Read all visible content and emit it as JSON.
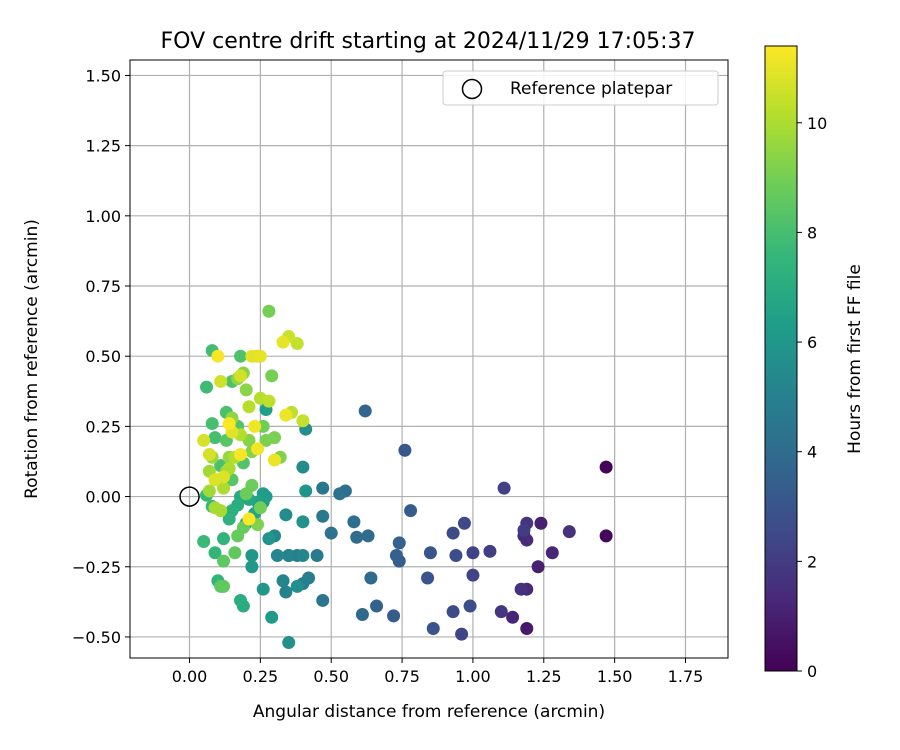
{
  "chart_data": {
    "type": "scatter",
    "title": "FOV centre drift starting at 2024/11/29 17:05:37",
    "xlabel": "Angular distance from reference (arcmin)",
    "ylabel": "Rotation from reference (arcmin)",
    "xlim": [
      -0.21,
      1.9
    ],
    "ylim": [
      -0.575,
      1.555
    ],
    "xticks": [
      "0.00",
      "0.25",
      "0.50",
      "0.75",
      "1.00",
      "1.25",
      "1.50",
      "1.75"
    ],
    "xtick_values": [
      0,
      0.25,
      0.5,
      0.75,
      1.0,
      1.25,
      1.5,
      1.75
    ],
    "yticks": [
      "−0.50",
      "−0.25",
      "0.00",
      "0.25",
      "0.50",
      "0.75",
      "1.00",
      "1.25",
      "1.50"
    ],
    "ytick_values": [
      -0.5,
      -0.25,
      0,
      0.25,
      0.5,
      0.75,
      1.0,
      1.25,
      1.5
    ],
    "grid": true,
    "legend": {
      "position": "top-right",
      "entries": [
        "Reference platepar"
      ]
    },
    "reference_point": {
      "x": 0.0,
      "y": 0.0
    },
    "colorbar": {
      "label": "Hours from first FF file",
      "range": [
        0,
        11.4
      ],
      "ticks": [
        "0",
        "2",
        "4",
        "6",
        "8",
        "10"
      ],
      "tick_values": [
        0,
        2,
        4,
        6,
        8,
        10
      ],
      "colormap": "viridis"
    },
    "points": [
      {
        "x": 1.47,
        "y": 0.105,
        "c": 0.1
      },
      {
        "x": 1.47,
        "y": -0.14,
        "c": 0.2
      },
      {
        "x": 1.19,
        "y": -0.47,
        "c": 0.8
      },
      {
        "x": 1.23,
        "y": -0.25,
        "c": 1.0
      },
      {
        "x": 1.24,
        "y": -0.095,
        "c": 1.0
      },
      {
        "x": 1.14,
        "y": -0.43,
        "c": 1.2
      },
      {
        "x": 1.28,
        "y": -0.2,
        "c": 1.2
      },
      {
        "x": 1.19,
        "y": -0.33,
        "c": 1.3
      },
      {
        "x": 1.18,
        "y": -0.14,
        "c": 1.4
      },
      {
        "x": 1.19,
        "y": -0.155,
        "c": 1.4
      },
      {
        "x": 1.34,
        "y": -0.125,
        "c": 1.6
      },
      {
        "x": 1.17,
        "y": -0.33,
        "c": 1.6
      },
      {
        "x": 1.19,
        "y": -0.095,
        "c": 1.7
      },
      {
        "x": 1.1,
        "y": -0.41,
        "c": 1.8
      },
      {
        "x": 1.18,
        "y": -0.12,
        "c": 2.0
      },
      {
        "x": 1.06,
        "y": -0.195,
        "c": 2.1
      },
      {
        "x": 1.11,
        "y": 0.03,
        "c": 2.2
      },
      {
        "x": 1.0,
        "y": -0.28,
        "c": 2.3
      },
      {
        "x": 1.0,
        "y": -0.2,
        "c": 2.3
      },
      {
        "x": 0.96,
        "y": -0.49,
        "c": 2.4
      },
      {
        "x": 0.97,
        "y": -0.095,
        "c": 2.5
      },
      {
        "x": 0.93,
        "y": -0.13,
        "c": 2.6
      },
      {
        "x": 0.93,
        "y": -0.41,
        "c": 2.6
      },
      {
        "x": 0.94,
        "y": -0.21,
        "c": 2.7
      },
      {
        "x": 0.99,
        "y": -0.39,
        "c": 2.7
      },
      {
        "x": 0.86,
        "y": -0.47,
        "c": 2.9
      },
      {
        "x": 0.85,
        "y": -0.2,
        "c": 3.0
      },
      {
        "x": 0.84,
        "y": -0.29,
        "c": 3.0
      },
      {
        "x": 0.76,
        "y": 0.165,
        "c": 3.1
      },
      {
        "x": 0.78,
        "y": -0.05,
        "c": 3.3
      },
      {
        "x": 0.72,
        "y": -0.425,
        "c": 3.3
      },
      {
        "x": 0.74,
        "y": -0.23,
        "c": 3.4
      },
      {
        "x": 0.73,
        "y": -0.21,
        "c": 3.5
      },
      {
        "x": 0.74,
        "y": -0.165,
        "c": 3.5
      },
      {
        "x": 0.66,
        "y": -0.39,
        "c": 3.6
      },
      {
        "x": 0.62,
        "y": 0.305,
        "c": 3.7
      },
      {
        "x": 0.61,
        "y": -0.42,
        "c": 3.8
      },
      {
        "x": 0.64,
        "y": -0.29,
        "c": 3.9
      },
      {
        "x": 0.63,
        "y": -0.14,
        "c": 4.0
      },
      {
        "x": 0.59,
        "y": -0.145,
        "c": 4.0
      },
      {
        "x": 0.58,
        "y": -0.09,
        "c": 4.1
      },
      {
        "x": 0.55,
        "y": 0.02,
        "c": 4.2
      },
      {
        "x": 0.53,
        "y": 0.01,
        "c": 4.3
      },
      {
        "x": 0.5,
        "y": -0.13,
        "c": 4.3
      },
      {
        "x": 0.47,
        "y": -0.37,
        "c": 4.5
      },
      {
        "x": 0.47,
        "y": 0.03,
        "c": 4.5
      },
      {
        "x": 0.47,
        "y": -0.07,
        "c": 4.6
      },
      {
        "x": 0.45,
        "y": -0.21,
        "c": 4.7
      },
      {
        "x": 0.42,
        "y": -0.29,
        "c": 4.8
      },
      {
        "x": 0.4,
        "y": -0.31,
        "c": 4.9
      },
      {
        "x": 0.38,
        "y": -0.21,
        "c": 4.9
      },
      {
        "x": 0.35,
        "y": -0.21,
        "c": 5.0
      },
      {
        "x": 0.35,
        "y": -0.21,
        "c": 5.1
      },
      {
        "x": 0.34,
        "y": -0.34,
        "c": 5.1
      },
      {
        "x": 0.33,
        "y": -0.3,
        "c": 5.2
      },
      {
        "x": 0.4,
        "y": -0.21,
        "c": 5.3
      },
      {
        "x": 0.31,
        "y": -0.21,
        "c": 5.3
      },
      {
        "x": 0.3,
        "y": -0.14,
        "c": 5.4
      },
      {
        "x": 0.34,
        "y": -0.065,
        "c": 5.5
      },
      {
        "x": 0.4,
        "y": 0.105,
        "c": 5.5
      },
      {
        "x": 0.41,
        "y": 0.24,
        "c": 5.6
      },
      {
        "x": 0.38,
        "y": -0.32,
        "c": 5.6
      },
      {
        "x": 0.35,
        "y": -0.52,
        "c": 5.7
      },
      {
        "x": 0.4,
        "y": -0.09,
        "c": 5.8
      },
      {
        "x": 0.41,
        "y": 0.02,
        "c": 5.9
      },
      {
        "x": 0.28,
        "y": -0.15,
        "c": 5.9
      },
      {
        "x": 0.26,
        "y": -0.33,
        "c": 6.0
      },
      {
        "x": 0.22,
        "y": -0.21,
        "c": 6.0
      },
      {
        "x": 0.22,
        "y": -0.25,
        "c": 6.1
      },
      {
        "x": 0.27,
        "y": 0.0,
        "c": 6.2
      },
      {
        "x": 0.29,
        "y": -0.43,
        "c": 6.2
      },
      {
        "x": 0.26,
        "y": 0.01,
        "c": 6.3
      },
      {
        "x": 0.26,
        "y": -0.02,
        "c": 6.4
      },
      {
        "x": 0.27,
        "y": 0.31,
        "c": 6.4
      },
      {
        "x": 0.24,
        "y": -0.02,
        "c": 6.5
      },
      {
        "x": 0.23,
        "y": -0.06,
        "c": 6.6
      },
      {
        "x": 0.21,
        "y": -0.01,
        "c": 6.7
      },
      {
        "x": 0.2,
        "y": -0.095,
        "c": 6.8
      },
      {
        "x": 0.18,
        "y": 0.0,
        "c": 6.9
      },
      {
        "x": 0.19,
        "y": -0.39,
        "c": 7.0
      },
      {
        "x": 0.18,
        "y": -0.37,
        "c": 7.1
      },
      {
        "x": 0.17,
        "y": -0.03,
        "c": 7.1
      },
      {
        "x": 0.15,
        "y": -0.05,
        "c": 7.2
      },
      {
        "x": 0.14,
        "y": -0.08,
        "c": 7.3
      },
      {
        "x": 0.12,
        "y": -0.15,
        "c": 7.4
      },
      {
        "x": 0.1,
        "y": -0.3,
        "c": 7.4
      },
      {
        "x": 0.09,
        "y": -0.2,
        "c": 7.5
      },
      {
        "x": 0.08,
        "y": -0.035,
        "c": 7.6
      },
      {
        "x": 0.06,
        "y": 0.005,
        "c": 7.6
      },
      {
        "x": 0.05,
        "y": -0.16,
        "c": 7.7
      },
      {
        "x": 0.06,
        "y": 0.39,
        "c": 7.8
      },
      {
        "x": 0.08,
        "y": 0.52,
        "c": 7.9
      },
      {
        "x": 0.08,
        "y": 0.26,
        "c": 8.0
      },
      {
        "x": 0.09,
        "y": 0.21,
        "c": 8.0
      },
      {
        "x": 0.11,
        "y": 0.11,
        "c": 8.1
      },
      {
        "x": 0.13,
        "y": 0.3,
        "c": 8.1
      },
      {
        "x": 0.15,
        "y": 0.41,
        "c": 8.2
      },
      {
        "x": 0.18,
        "y": 0.5,
        "c": 8.2
      },
      {
        "x": 0.19,
        "y": 0.12,
        "c": 8.3
      },
      {
        "x": 0.17,
        "y": 0.25,
        "c": 8.3
      },
      {
        "x": 0.15,
        "y": 0.06,
        "c": 8.4
      },
      {
        "x": 0.13,
        "y": 0.2,
        "c": 8.4
      },
      {
        "x": 0.12,
        "y": -0.23,
        "c": 8.5
      },
      {
        "x": 0.11,
        "y": -0.32,
        "c": 8.5
      },
      {
        "x": 0.12,
        "y": -0.32,
        "c": 8.6
      },
      {
        "x": 0.16,
        "y": -0.2,
        "c": 8.6
      },
      {
        "x": 0.17,
        "y": -0.14,
        "c": 8.7
      },
      {
        "x": 0.19,
        "y": -0.11,
        "c": 8.7
      },
      {
        "x": 0.2,
        "y": 0.01,
        "c": 8.8
      },
      {
        "x": 0.22,
        "y": 0.04,
        "c": 8.8
      },
      {
        "x": 0.25,
        "y": -0.04,
        "c": 8.9
      },
      {
        "x": 0.26,
        "y": 0.25,
        "c": 8.9
      },
      {
        "x": 0.29,
        "y": 0.43,
        "c": 9.0
      },
      {
        "x": 0.28,
        "y": 0.66,
        "c": 9.0
      },
      {
        "x": 0.27,
        "y": 0.2,
        "c": 9.1
      },
      {
        "x": 0.3,
        "y": 0.21,
        "c": 9.1
      },
      {
        "x": 0.32,
        "y": 0.14,
        "c": 9.2
      },
      {
        "x": 0.24,
        "y": -0.1,
        "c": 9.2
      },
      {
        "x": 0.22,
        "y": 0.16,
        "c": 9.3
      },
      {
        "x": 0.21,
        "y": 0.2,
        "c": 9.3
      },
      {
        "x": 0.2,
        "y": 0.38,
        "c": 9.4
      },
      {
        "x": 0.19,
        "y": 0.44,
        "c": 9.4
      },
      {
        "x": 0.17,
        "y": 0.42,
        "c": 9.5
      },
      {
        "x": 0.15,
        "y": 0.28,
        "c": 9.5
      },
      {
        "x": 0.14,
        "y": 0.14,
        "c": 9.6
      },
      {
        "x": 0.13,
        "y": 0.09,
        "c": 9.6
      },
      {
        "x": 0.1,
        "y": 0.06,
        "c": 9.7
      },
      {
        "x": 0.08,
        "y": 0.14,
        "c": 9.7
      },
      {
        "x": 0.07,
        "y": 0.09,
        "c": 9.8
      },
      {
        "x": 0.07,
        "y": 0.02,
        "c": 9.8
      },
      {
        "x": 0.09,
        "y": -0.04,
        "c": 9.9
      },
      {
        "x": 0.11,
        "y": -0.05,
        "c": 9.9
      },
      {
        "x": 0.12,
        "y": 0.03,
        "c": 10.0
      },
      {
        "x": 0.14,
        "y": 0.1,
        "c": 10.0
      },
      {
        "x": 0.16,
        "y": 0.14,
        "c": 10.1
      },
      {
        "x": 0.18,
        "y": 0.22,
        "c": 10.1
      },
      {
        "x": 0.21,
        "y": 0.32,
        "c": 10.2
      },
      {
        "x": 0.25,
        "y": 0.35,
        "c": 10.2
      },
      {
        "x": 0.28,
        "y": 0.34,
        "c": 10.3
      },
      {
        "x": 0.36,
        "y": 0.3,
        "c": 10.3
      },
      {
        "x": 0.4,
        "y": 0.27,
        "c": 10.4
      },
      {
        "x": 0.38,
        "y": 0.545,
        "c": 10.4
      },
      {
        "x": 0.35,
        "y": 0.57,
        "c": 10.5
      },
      {
        "x": 0.24,
        "y": 0.5,
        "c": 10.5
      },
      {
        "x": 0.18,
        "y": 0.43,
        "c": 10.6
      },
      {
        "x": 0.11,
        "y": 0.41,
        "c": 10.6
      },
      {
        "x": 0.07,
        "y": 0.15,
        "c": 10.7
      },
      {
        "x": 0.05,
        "y": 0.2,
        "c": 10.7
      },
      {
        "x": 0.09,
        "y": 0.06,
        "c": 10.8
      },
      {
        "x": 0.12,
        "y": 0.07,
        "c": 10.8
      },
      {
        "x": 0.15,
        "y": 0.23,
        "c": 10.9
      },
      {
        "x": 0.22,
        "y": 0.5,
        "c": 10.9
      },
      {
        "x": 0.25,
        "y": 0.5,
        "c": 11.0
      },
      {
        "x": 0.33,
        "y": 0.55,
        "c": 11.0
      },
      {
        "x": 0.34,
        "y": 0.29,
        "c": 11.1
      },
      {
        "x": 0.3,
        "y": 0.13,
        "c": 11.1
      },
      {
        "x": 0.24,
        "y": 0.17,
        "c": 11.2
      },
      {
        "x": 0.23,
        "y": 0.25,
        "c": 11.2
      },
      {
        "x": 0.1,
        "y": 0.5,
        "c": 11.3
      },
      {
        "x": 0.18,
        "y": 0.15,
        "c": 11.3
      },
      {
        "x": 0.14,
        "y": 0.26,
        "c": 11.35
      },
      {
        "x": 0.21,
        "y": -0.08,
        "c": 11.35
      }
    ]
  }
}
